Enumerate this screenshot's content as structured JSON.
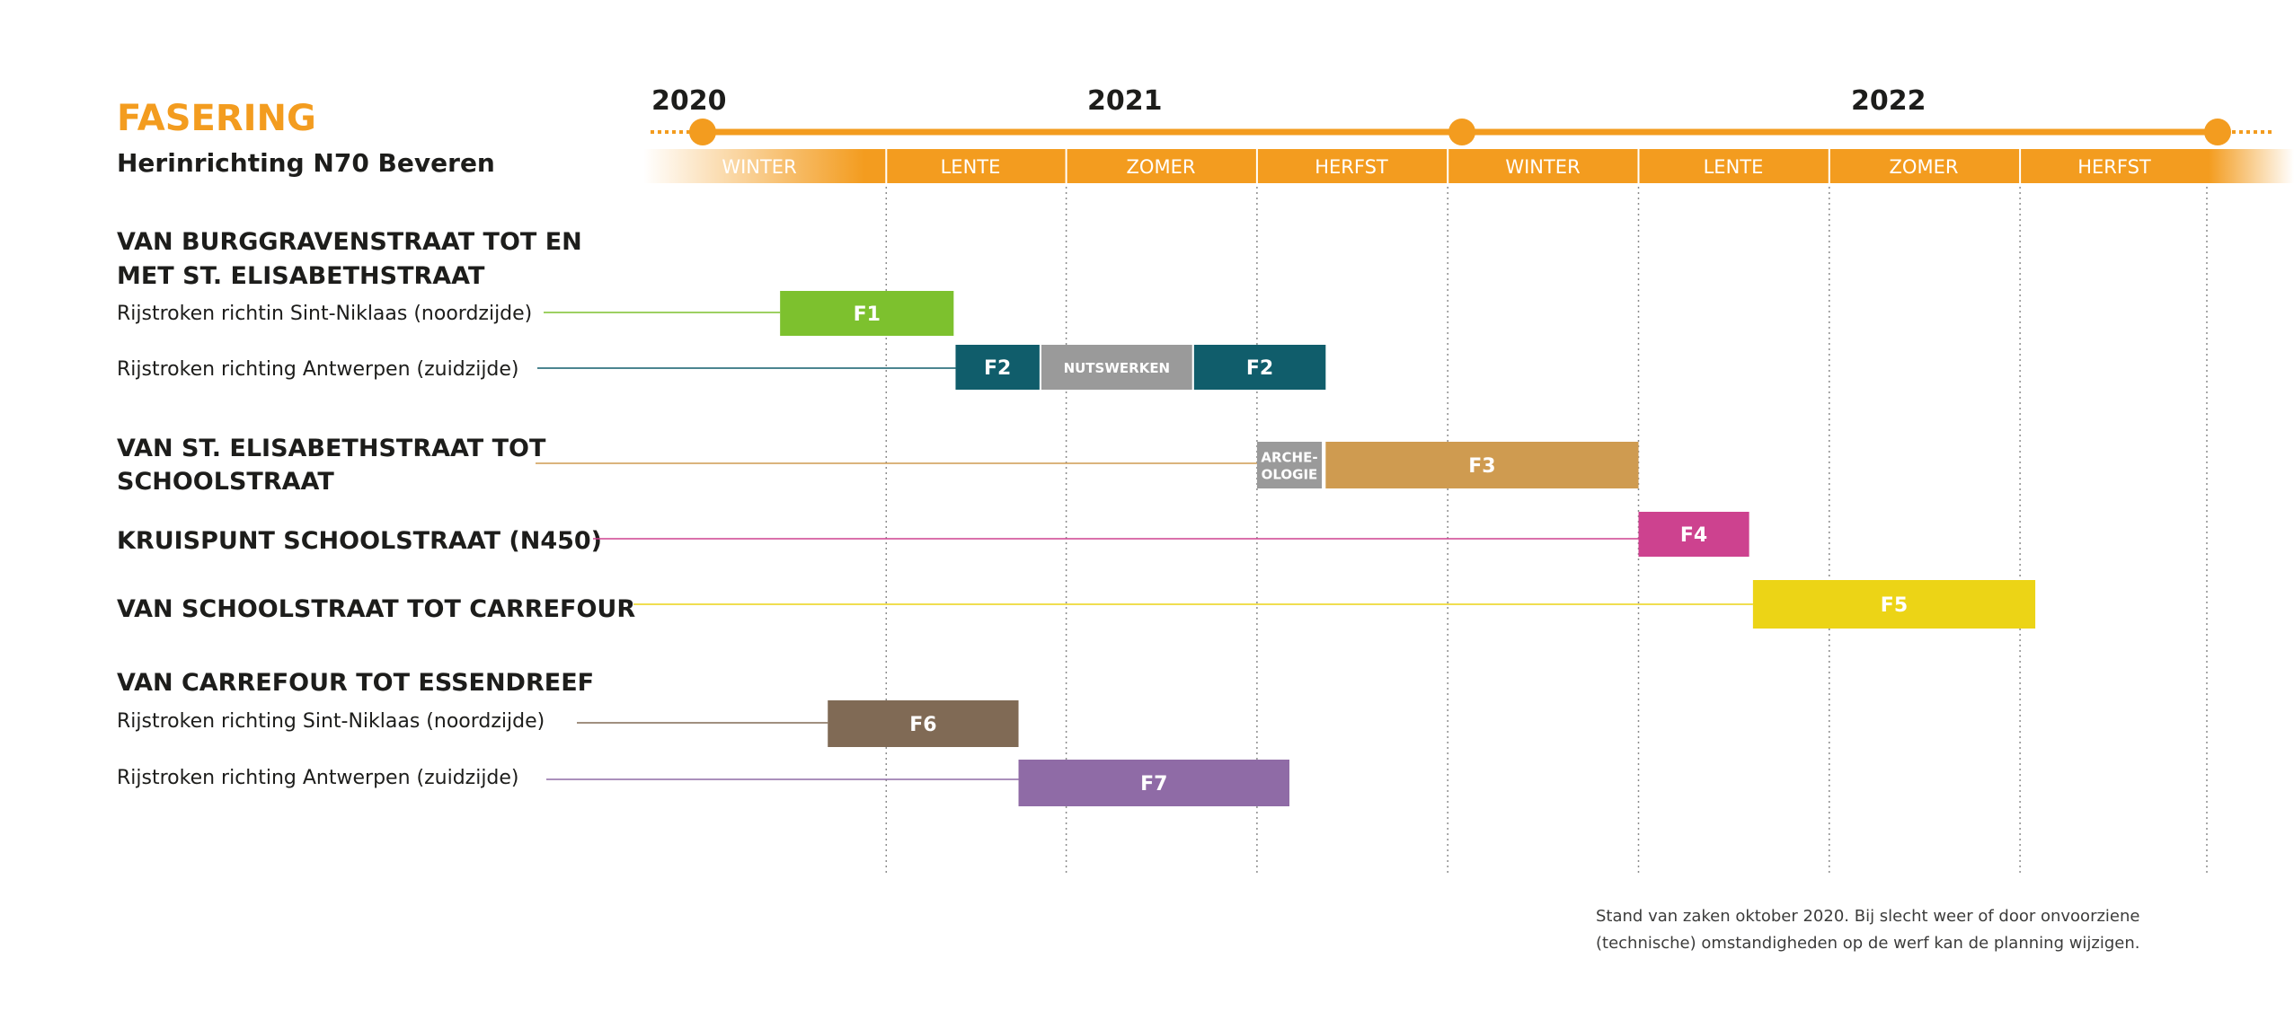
{
  "title": "FASERING",
  "subtitle": "Herinrichting N70 Beveren",
  "footnote": [
    "Stand van zaken oktober 2020. Bij slecht weer of door onvoorziene",
    "(technische) omstandigheden op de werf kan de planning wijzigen."
  ],
  "colors": {
    "accent": "#f39c1f",
    "text": "#1d1d1b",
    "grid": "#8c8c8c"
  },
  "chart_data": {
    "type": "gantt",
    "years": [
      "2020",
      "2021",
      "2022"
    ],
    "seasons": [
      "WINTER",
      "LENTE",
      "ZOMER",
      "HERFST",
      "WINTER",
      "LENTE",
      "ZOMER",
      "HERFST"
    ],
    "rows": [
      {
        "id": "r1",
        "section": "VAN BURGGRAVENSTRAAT TOT EN MET ST. ELISABETHSTRAAT",
        "section_lines": [
          "VAN BURGGRAVENSTRAAT TOT EN",
          "MET ST. ELISABETHSTRAAT"
        ],
        "label": "Rijstroken richtin Sint-Niklaas (noordzijde)",
        "line_color": "#7dc12e",
        "bars": [
          {
            "label": "F1",
            "start": 0.5,
            "end": 1.41,
            "color": "#7dc12e"
          }
        ]
      },
      {
        "id": "r2",
        "label": "Rijstroken richting Antwerpen (zuidzijde)",
        "line_color": "#105d6b",
        "bars": [
          {
            "label": "F2",
            "start": 1.42,
            "end": 1.86,
            "color": "#105d6b"
          },
          {
            "label": "NUTSWERKEN",
            "start": 1.87,
            "end": 2.66,
            "color": "#9a9a9a",
            "small": true
          },
          {
            "label": "F2",
            "start": 2.67,
            "end": 3.36,
            "color": "#105d6b"
          }
        ]
      },
      {
        "id": "r3",
        "section": "VAN ST. ELISABETHSTRAAT TOT SCHOOLSTRAAT",
        "section_lines": [
          "VAN ST. ELISABETHSTRAAT TOT",
          "SCHOOLSTRAAT"
        ],
        "line_color": "#cf9b50",
        "bars": [
          {
            "label": "ARCHE-\nOLOGIE",
            "start": 3.0,
            "end": 3.34,
            "color": "#9a9a9a",
            "small": true
          },
          {
            "label": "F3",
            "start": 3.36,
            "end": 5.0,
            "color": "#cf9b50"
          }
        ]
      },
      {
        "id": "r4",
        "section": "KRUISPUNT SCHOOLSTRAAT (N450)",
        "section_lines": [
          "KRUISPUNT SCHOOLSTRAAT (N450)"
        ],
        "line_color": "#cd428f",
        "bars": [
          {
            "label": "F4",
            "start": 5.0,
            "end": 5.58,
            "color": "#cd428f"
          }
        ]
      },
      {
        "id": "r5",
        "section": "VAN SCHOOLSTRAAT TOT CARREFOUR",
        "section_lines": [
          "VAN SCHOOLSTRAAT TOT CARREFOUR"
        ],
        "line_color": "#ecd416",
        "bars": [
          {
            "label": "F5",
            "start": 5.6,
            "end": 7.08,
            "color": "#ecd416"
          }
        ]
      },
      {
        "id": "r6",
        "section": "VAN CARREFOUR TOT ESSENDREEF",
        "section_lines": [
          "VAN CARREFOUR TOT ESSENDREEF"
        ],
        "label": "Rijstroken richting Sint-Niklaas (noordzijde)",
        "line_color": "#806a55",
        "bars": [
          {
            "label": "F6",
            "start": 0.75,
            "end": 1.75,
            "color": "#806a55"
          }
        ]
      },
      {
        "id": "r7",
        "label": "Rijstroken richting Antwerpen (zuidzijde)",
        "line_color": "#8f6ba6",
        "bars": [
          {
            "label": "F7",
            "start": 1.75,
            "end": 3.17,
            "color": "#8f6ba6"
          }
        ]
      }
    ]
  }
}
